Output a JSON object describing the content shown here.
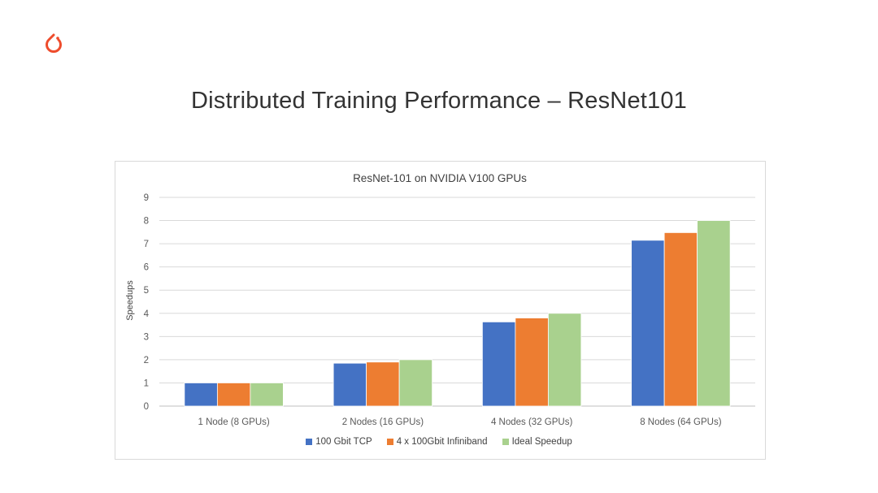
{
  "slide": {
    "title": "Distributed Training Performance – ResNet101"
  },
  "logo": {
    "icon": "pytorch-flame-icon",
    "color": "#EE4C2C"
  },
  "chart_data": {
    "type": "bar",
    "title": "ResNet-101 on NVIDIA V100 GPUs",
    "xlabel": "",
    "ylabel": "Speedups",
    "ylim": [
      0,
      9
    ],
    "yticks": [
      "0",
      "1",
      "2",
      "3",
      "4",
      "5",
      "6",
      "7",
      "8",
      "9"
    ],
    "grid": true,
    "legend_position": "bottom",
    "categories": [
      "1 Node (8 GPUs)",
      "2 Nodes (16 GPUs)",
      "4 Nodes (32 GPUs)",
      "8 Nodes (64 GPUs)"
    ],
    "series": [
      {
        "name": "100 Gbit TCP",
        "color": "#4472C4",
        "values": [
          1.0,
          1.85,
          3.63,
          7.15
        ]
      },
      {
        "name": "4 x 100Gbit Infiniband",
        "color": "#ED7D31",
        "values": [
          1.0,
          1.9,
          3.8,
          7.48
        ]
      },
      {
        "name": "Ideal Speedup",
        "color": "#A9D18E",
        "values": [
          1.0,
          2.0,
          4.0,
          8.0
        ]
      }
    ]
  }
}
